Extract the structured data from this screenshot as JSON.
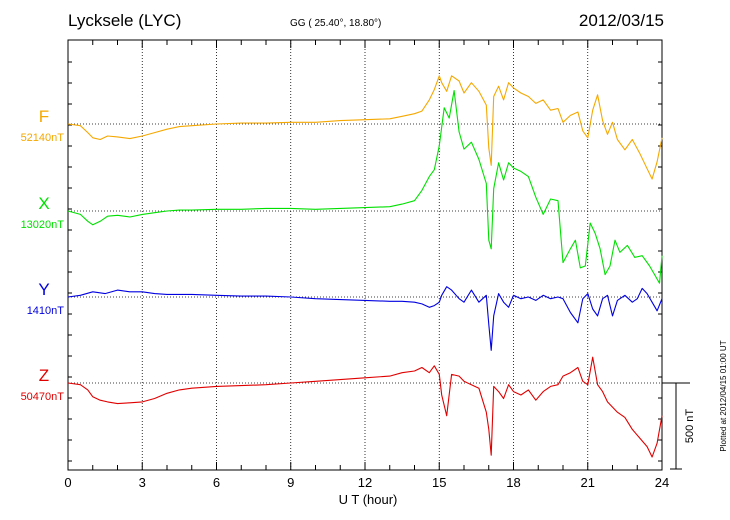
{
  "header": {
    "station": "Lycksele (LYC)",
    "coords": "GG ( 25.40°,  18.80°)",
    "date": "2012/03/15"
  },
  "scale_label": "500 nT",
  "plotted_label": "Plotted at 2012/04/15 01:00 UT",
  "chart_data": {
    "type": "line",
    "title": "Lycksele (LYC)",
    "xlabel": "U T (hour)",
    "ylabel": "",
    "xlim": [
      0,
      24
    ],
    "xticks": [
      0,
      3,
      6,
      9,
      12,
      15,
      18,
      21,
      24
    ],
    "grid": true,
    "scale_bar_nT": 500,
    "series": [
      {
        "name": "F",
        "baseline_label": "52140nT",
        "baseline": 52140,
        "color": "#f5a800",
        "x": [
          0,
          0.5,
          0.8,
          1.0,
          1.3,
          1.6,
          2.0,
          2.5,
          3.0,
          3.5,
          4.0,
          4.5,
          5.0,
          6.0,
          7.0,
          8.0,
          9.0,
          10.0,
          11.0,
          12.0,
          13.0,
          13.5,
          14.0,
          14.3,
          14.6,
          14.8,
          15.0,
          15.1,
          15.3,
          15.5,
          15.8,
          16.0,
          16.3,
          16.6,
          16.9,
          17.0,
          17.1,
          17.2,
          17.4,
          17.6,
          17.8,
          18.0,
          18.3,
          18.6,
          18.9,
          19.2,
          19.5,
          19.8,
          20.0,
          20.3,
          20.6,
          20.8,
          21.0,
          21.2,
          21.4,
          21.6,
          21.8,
          22.0,
          22.2,
          22.5,
          22.8,
          23.1,
          23.4,
          23.6,
          23.8,
          24.0
        ],
        "y": [
          52140,
          52130,
          52090,
          52060,
          52050,
          52070,
          52065,
          52055,
          52070,
          52090,
          52110,
          52125,
          52130,
          52140,
          52145,
          52145,
          52150,
          52150,
          52160,
          52165,
          52170,
          52185,
          52200,
          52215,
          52280,
          52340,
          52420,
          52380,
          52330,
          52420,
          52390,
          52320,
          52380,
          52330,
          52250,
          52000,
          51900,
          52300,
          52360,
          52280,
          52380,
          52350,
          52320,
          52300,
          52260,
          52280,
          52220,
          52230,
          52150,
          52190,
          52210,
          52100,
          52060,
          52220,
          52310,
          52160,
          52080,
          52150,
          52050,
          51990,
          52050,
          51970,
          51880,
          51820,
          51920,
          52060
        ]
      },
      {
        "name": "X",
        "baseline_label": "13020nT",
        "baseline": 13020,
        "color": "#00e000",
        "x": [
          0,
          0.5,
          0.8,
          1.0,
          1.3,
          1.6,
          2.0,
          2.5,
          3.0,
          3.5,
          4.0,
          4.5,
          5.0,
          6.0,
          7.0,
          8.0,
          9.0,
          10.0,
          11.0,
          12.0,
          13.0,
          13.5,
          14.0,
          14.3,
          14.6,
          14.8,
          15.0,
          15.2,
          15.4,
          15.6,
          15.8,
          16.0,
          16.3,
          16.6,
          16.9,
          17.0,
          17.1,
          17.2,
          17.4,
          17.6,
          17.8,
          18.0,
          18.3,
          18.6,
          18.9,
          19.2,
          19.5,
          19.8,
          20.0,
          20.3,
          20.5,
          20.7,
          20.9,
          21.1,
          21.3,
          21.5,
          21.7,
          21.9,
          22.1,
          22.3,
          22.6,
          22.9,
          23.2,
          23.5,
          23.7,
          23.9,
          24.0
        ],
        "y": [
          13020,
          13000,
          12960,
          12940,
          12960,
          12990,
          12995,
          12985,
          13000,
          13010,
          13020,
          13025,
          13025,
          13030,
          13030,
          13035,
          13035,
          13030,
          13035,
          13040,
          13045,
          13060,
          13080,
          13140,
          13220,
          13260,
          13400,
          13620,
          13560,
          13720,
          13480,
          13380,
          13420,
          13320,
          13180,
          12850,
          12800,
          13150,
          13300,
          13200,
          13300,
          13270,
          13250,
          13220,
          13100,
          13000,
          13090,
          13080,
          12720,
          12800,
          12850,
          12690,
          12700,
          12950,
          12890,
          12800,
          12650,
          12700,
          12850,
          12780,
          12820,
          12750,
          12760,
          12700,
          12650,
          12600,
          12760
        ]
      },
      {
        "name": "Y",
        "baseline_label": "1410nT",
        "baseline": 1410,
        "color": "#0000e0",
        "x": [
          0,
          0.5,
          1.0,
          1.5,
          2.0,
          2.5,
          3.0,
          3.5,
          4.0,
          5.0,
          6.0,
          7.0,
          8.0,
          9.0,
          10.0,
          11.0,
          12.0,
          13.0,
          13.5,
          14.0,
          14.3,
          14.6,
          14.8,
          15.0,
          15.1,
          15.3,
          15.5,
          15.8,
          16.0,
          16.3,
          16.6,
          16.9,
          17.0,
          17.1,
          17.2,
          17.4,
          17.6,
          17.8,
          18.0,
          18.3,
          18.6,
          18.9,
          19.2,
          19.5,
          19.8,
          20.0,
          20.3,
          20.6,
          20.8,
          21.0,
          21.2,
          21.4,
          21.6,
          21.8,
          22.0,
          22.2,
          22.5,
          22.8,
          23.0,
          23.2,
          23.4,
          23.6,
          23.8,
          24.0
        ],
        "y": [
          1410,
          1420,
          1440,
          1430,
          1450,
          1440,
          1440,
          1430,
          1425,
          1425,
          1420,
          1415,
          1415,
          1410,
          1400,
          1395,
          1390,
          1385,
          1385,
          1380,
          1370,
          1350,
          1360,
          1380,
          1420,
          1470,
          1450,
          1400,
          1380,
          1450,
          1380,
          1420,
          1250,
          1100,
          1300,
          1430,
          1380,
          1350,
          1420,
          1400,
          1410,
          1390,
          1420,
          1400,
          1410,
          1400,
          1320,
          1260,
          1400,
          1430,
          1340,
          1300,
          1400,
          1420,
          1300,
          1390,
          1420,
          1380,
          1400,
          1460,
          1430,
          1380,
          1330,
          1400
        ]
      },
      {
        "name": "Z",
        "baseline_label": "50470nT",
        "baseline": 50470,
        "color": "#e00000",
        "x": [
          0,
          0.5,
          0.8,
          1.0,
          1.3,
          1.6,
          2.0,
          2.5,
          3.0,
          3.5,
          4.0,
          4.5,
          5.0,
          6.0,
          7.0,
          8.0,
          9.0,
          10.0,
          11.0,
          12.0,
          13.0,
          13.5,
          14.0,
          14.3,
          14.6,
          14.8,
          15.0,
          15.1,
          15.3,
          15.5,
          15.8,
          16.0,
          16.3,
          16.6,
          16.9,
          17.0,
          17.1,
          17.2,
          17.4,
          17.6,
          17.8,
          18.0,
          18.3,
          18.6,
          18.9,
          19.2,
          19.5,
          19.8,
          20.0,
          20.3,
          20.6,
          20.8,
          21.0,
          21.2,
          21.4,
          21.6,
          21.8,
          22.0,
          22.2,
          22.5,
          22.8,
          23.1,
          23.4,
          23.6,
          23.8,
          24.0
        ],
        "y": [
          50470,
          50460,
          50430,
          50390,
          50370,
          50360,
          50350,
          50355,
          50360,
          50380,
          50410,
          50430,
          50440,
          50450,
          50455,
          50460,
          50470,
          50480,
          50490,
          50500,
          50510,
          50530,
          50540,
          50560,
          50530,
          50570,
          50520,
          50400,
          50280,
          50520,
          50510,
          50480,
          50460,
          50440,
          50300,
          50200,
          50050,
          50450,
          50420,
          50380,
          50460,
          50420,
          50400,
          50430,
          50370,
          50420,
          50450,
          50460,
          50510,
          50530,
          50560,
          50480,
          50460,
          50620,
          50460,
          50420,
          50360,
          50330,
          50300,
          50270,
          50200,
          50150,
          50100,
          50040,
          50120,
          50280
        ]
      }
    ]
  }
}
